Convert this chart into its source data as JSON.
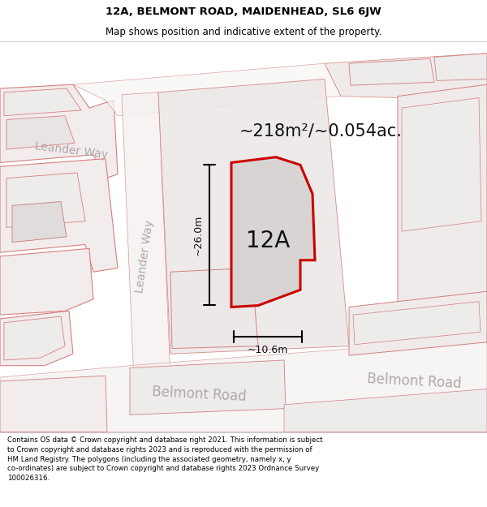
{
  "title_line1": "12A, BELMONT ROAD, MAIDENHEAD, SL6 6JW",
  "title_line2": "Map shows position and indicative extent of the property.",
  "area_text": "~218m²/~0.054ac.",
  "label_12a": "12A",
  "dim_height": "~26.0m",
  "dim_width": "~10.6m",
  "road_label_leander_top": "Leander Way",
  "road_label_leander_vert": "Leander Way",
  "road_label_belmont_left": "Belmont Road",
  "road_label_belmont_right": "Belmont Road",
  "footer": "Contains OS data © Crown copyright and database right 2021. This information is subject to Crown copyright and database rights 2023 and is reproduced with the permission of HM Land Registry. The polygons (including the associated geometry, namely x, y co-ordinates) are subject to Crown copyright and database rights 2023 Ordnance Survey 100026316.",
  "title_bg": "#ffffff",
  "map_bg": "#f5efef",
  "footer_bg": "#ffffff",
  "block_fill": "#f0e8e8",
  "block_edge": "#e08080",
  "block_fill2": "#eeebeb",
  "road_fill": "#f8f3f3",
  "prop_fill": "#d8d4d4",
  "prop_edge": "#cc0000",
  "grey_block": "#e8e4e4",
  "right_fill": "#eeeaea"
}
